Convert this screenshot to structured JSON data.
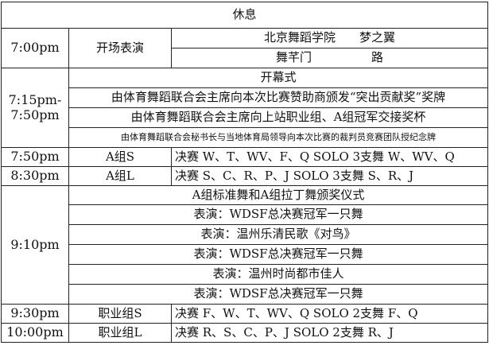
{
  "rows": {
    "break": "休息",
    "opening_perf": {
      "time": "7:00pm",
      "label": "开场表演",
      "line1": "北京舞蹈学院　　梦之翼",
      "line2": "舞芊门　　　　　路"
    },
    "ceremony": {
      "time_start": "7:15pm-",
      "time_end": "7:50pm",
      "items": [
        "开幕式",
        "由体育舞蹈联合会主席向本次比赛赞助商颁发“突出贡献奖”奖牌",
        "由体育舞蹈联合会主席向上站职业组、A组冠军交接奖杯",
        "由体育舞蹈联合会秘书长与当地体育局领导向本次比赛的裁判员竞赛团队授纪念牌"
      ]
    },
    "a_s": {
      "time": "7:50pm",
      "group": "A组S",
      "detail": "决赛 W、T、WV、F、Q SOLO 3支舞 W、WV、Q"
    },
    "a_l": {
      "time": "8:30pm",
      "group": "A组L",
      "detail": "决赛 S、C、R、P、J  SOLO 3支舞 S、R、J"
    },
    "awards": {
      "time": "9:10pm",
      "items": [
        "A组标准舞和A组拉丁舞颁奖仪式",
        "表演：WDSF总决赛冠军一只舞",
        "表演：温州乐清民歌《对鸟》",
        "表演：WDSF总决赛冠军一只舞",
        "表演：温州时尚都市佳人",
        "表演：WDSF总决赛冠军一只舞"
      ]
    },
    "pro_s": {
      "time": "9:30pm",
      "group": "职业组S",
      "detail": "决赛 F、W、T、WV、Q    SOLO 2支舞 F、Q"
    },
    "pro_l": {
      "time": "10:00pm",
      "group": "职业组L",
      "detail": "决赛 R、S、C、P、J    SOLO 2支舞 R、J"
    }
  }
}
